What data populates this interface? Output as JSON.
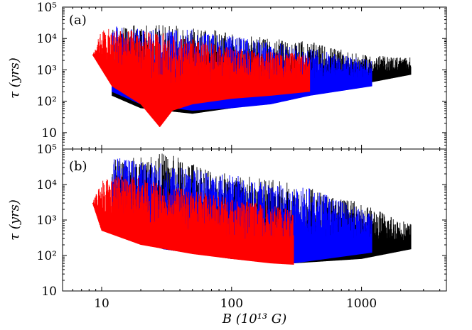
{
  "chart_data": [
    {
      "panel_label": "(a)",
      "type": "line",
      "ylabel": "τ (yrs)",
      "yscale": "log",
      "xscale": "log",
      "ylim": [
        3,
        100000
      ],
      "xlim": [
        5,
        4500
      ],
      "y_ticks": [
        {
          "value": 10,
          "label": "10"
        },
        {
          "value": 100,
          "label": "10²"
        },
        {
          "value": 1000,
          "label": "10³"
        },
        {
          "value": 10000,
          "label": "10⁴"
        },
        {
          "value": 100000,
          "label": "10⁵"
        }
      ],
      "series": [
        {
          "color": "#000000",
          "x_range": [
            12,
            2400
          ],
          "lower_envelope": [
            [
              12,
              150
            ],
            [
              20,
              60
            ],
            [
              50,
              40
            ],
            [
              100,
              60
            ],
            [
              200,
              100
            ],
            [
              400,
              200
            ],
            [
              1000,
              350
            ],
            [
              2400,
              700
            ]
          ],
          "upper_envelope": [
            [
              12,
              20000
            ],
            [
              20,
              30000
            ],
            [
              50,
              25000
            ],
            [
              100,
              15000
            ],
            [
              200,
              10000
            ],
            [
              400,
              8000
            ],
            [
              1000,
              3000
            ],
            [
              2400,
              2500
            ]
          ]
        },
        {
          "color": "#0000ff",
          "x_range": [
            12,
            1200
          ],
          "lower_envelope": [
            [
              12,
              200
            ],
            [
              20,
              80
            ],
            [
              50,
              50
            ],
            [
              100,
              60
            ],
            [
              200,
              80
            ],
            [
              400,
              150
            ],
            [
              1200,
              300
            ]
          ],
          "upper_envelope": [
            [
              12,
              25000
            ],
            [
              20,
              20000
            ],
            [
              50,
              20000
            ],
            [
              100,
              12000
            ],
            [
              200,
              8000
            ],
            [
              400,
              5000
            ],
            [
              1200,
              2000
            ]
          ]
        },
        {
          "color": "#ff0000",
          "x_range": [
            8.5,
            400
          ],
          "lower_envelope": [
            [
              8.5,
              3000
            ],
            [
              12,
              300
            ],
            [
              20,
              80
            ],
            [
              28,
              15
            ],
            [
              35,
              50
            ],
            [
              50,
              80
            ],
            [
              100,
              120
            ],
            [
              200,
              150
            ],
            [
              400,
              200
            ]
          ],
          "upper_envelope": [
            [
              8.5,
              3000
            ],
            [
              10,
              20000
            ],
            [
              15,
              20000
            ],
            [
              30,
              15000
            ],
            [
              60,
              8000
            ],
            [
              100,
              5000
            ],
            [
              200,
              4000
            ],
            [
              400,
              3000
            ]
          ]
        }
      ]
    },
    {
      "panel_label": "(b)",
      "type": "line",
      "ylabel": "τ (yrs)",
      "xlabel": "B (10¹³ G)",
      "yscale": "log",
      "xscale": "log",
      "ylim": [
        10,
        100000
      ],
      "xlim": [
        5,
        4500
      ],
      "x_ticks": [
        {
          "value": 10,
          "label": "10"
        },
        {
          "value": 100,
          "label": "100"
        },
        {
          "value": 1000,
          "label": "1000"
        }
      ],
      "y_ticks": [
        {
          "value": 10,
          "label": "10"
        },
        {
          "value": 100,
          "label": "10²"
        },
        {
          "value": 1000,
          "label": "10³"
        },
        {
          "value": 10000,
          "label": "10⁴"
        },
        {
          "value": 100000,
          "label": "10⁵"
        }
      ],
      "series": [
        {
          "color": "#000000",
          "x_range": [
            12,
            2400
          ],
          "lower_envelope": [
            [
              12,
              400
            ],
            [
              30,
              150
            ],
            [
              100,
              80
            ],
            [
              300,
              60
            ],
            [
              1000,
              80
            ],
            [
              2400,
              150
            ]
          ],
          "upper_envelope": [
            [
              12,
              50000
            ],
            [
              30,
              80000
            ],
            [
              60,
              40000
            ],
            [
              100,
              20000
            ],
            [
              200,
              15000
            ],
            [
              400,
              8000
            ],
            [
              1000,
              3000
            ],
            [
              2400,
              800
            ]
          ]
        },
        {
          "color": "#0000ff",
          "x_range": [
            12,
            1200
          ],
          "lower_envelope": [
            [
              12,
              500
            ],
            [
              30,
              150
            ],
            [
              100,
              80
            ],
            [
              300,
              60
            ],
            [
              1200,
              120
            ]
          ],
          "upper_envelope": [
            [
              12,
              60000
            ],
            [
              30,
              40000
            ],
            [
              100,
              20000
            ],
            [
              200,
              10000
            ],
            [
              400,
              8000
            ],
            [
              1200,
              1500
            ]
          ]
        },
        {
          "color": "#ff0000",
          "x_range": [
            8.5,
            300
          ],
          "lower_envelope": [
            [
              8.5,
              3000
            ],
            [
              10,
              500
            ],
            [
              20,
              200
            ],
            [
              50,
              110
            ],
            [
              100,
              80
            ],
            [
              200,
              60
            ],
            [
              300,
              55
            ]
          ],
          "upper_envelope": [
            [
              8.5,
              3000
            ],
            [
              10,
              15000
            ],
            [
              15,
              20000
            ],
            [
              30,
              10000
            ],
            [
              60,
              6000
            ],
            [
              100,
              4000
            ],
            [
              300,
              2000
            ]
          ]
        }
      ]
    }
  ]
}
